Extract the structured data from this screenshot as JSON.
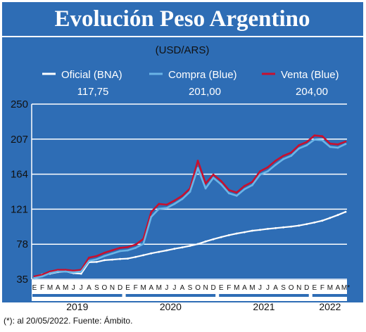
{
  "header": {
    "title": "Evolución Peso Argentino"
  },
  "unit_label": "(USD/ARS)",
  "footnote": "(*): al 20/05/2022. Fuente: Ámbito.",
  "colors": {
    "panel": "#2e6db5",
    "oficial": "#ffffff",
    "compra": "#6ab4e6",
    "venta": "#c8102e",
    "grid": "#ffffff"
  },
  "chart_data": {
    "type": "line",
    "title": "Evolución Peso Argentino",
    "subtitle": "(USD/ARS)",
    "ylim": [
      35,
      250
    ],
    "yticks": [
      35,
      78,
      121,
      164,
      207,
      250
    ],
    "grid": true,
    "legend_position": "top",
    "month_labels": [
      "E",
      "F",
      "M",
      "A",
      "M",
      "J",
      "J",
      "A",
      "S",
      "O",
      "N",
      "D",
      "E",
      "F",
      "M",
      "A",
      "M",
      "J",
      "J",
      "A",
      "S",
      "O",
      "N",
      "D",
      "E",
      "F",
      "M",
      "A",
      "M",
      "J",
      "J",
      "A",
      "S",
      "O",
      "N",
      "D",
      "E",
      "F",
      "M",
      "A",
      "M*"
    ],
    "years": [
      "2019",
      "2020",
      "2021",
      "2022"
    ],
    "series": [
      {
        "name": "Oficial (BNA)",
        "last_value": "117,75",
        "color": "#ffffff",
        "values": [
          37.5,
          40.9,
          41.8,
          43.8,
          44.6,
          42.5,
          41.8,
          55.9,
          56.2,
          58.4,
          59.1,
          59.9,
          60.4,
          62.4,
          64.5,
          66.8,
          68.6,
          70.4,
          72.4,
          74.1,
          76.0,
          78.3,
          81.4,
          84.1,
          86.7,
          89.1,
          91.1,
          92.8,
          94.6,
          95.6,
          96.8,
          97.8,
          98.7,
          99.7,
          100.9,
          102.7,
          104.7,
          106.9,
          110.3,
          113.8,
          117.75
        ]
      },
      {
        "name": "Compra (Blue)",
        "last_value": "201,00",
        "color": "#6ab4e6",
        "values": [
          36.5,
          38.5,
          42.5,
          44.5,
          44.5,
          43.5,
          44.5,
          57.5,
          59.5,
          63.5,
          66.5,
          69.5,
          70.5,
          73.5,
          78.5,
          111.5,
          121.5,
          122.5,
          127.5,
          133.5,
          142.5,
          171.5,
          146.5,
          159.5,
          151.5,
          140.5,
          137.5,
          145.5,
          150.5,
          163.5,
          167.5,
          175.5,
          182.5,
          186.5,
          195.5,
          199.5,
          206.5,
          205.5,
          197.5,
          196.5,
          201.0
        ]
      },
      {
        "name": "Venta (Blue)",
        "last_value": "204,00",
        "color": "#c8102e",
        "values": [
          38.5,
          40.5,
          44.5,
          46.5,
          46.5,
          45.5,
          46.5,
          61.5,
          63.5,
          67.5,
          70.5,
          73.5,
          74.5,
          77.5,
          84.5,
          117.5,
          127.5,
          126.5,
          131.5,
          137.5,
          146.5,
          180.5,
          152.5,
          163.5,
          155.5,
          144.5,
          141.5,
          149.5,
          154.5,
          167.5,
          172.5,
          180.5,
          186.5,
          190.5,
          199.5,
          203.5,
          211.5,
          210.5,
          201.5,
          200.5,
          204.0
        ]
      }
    ]
  }
}
